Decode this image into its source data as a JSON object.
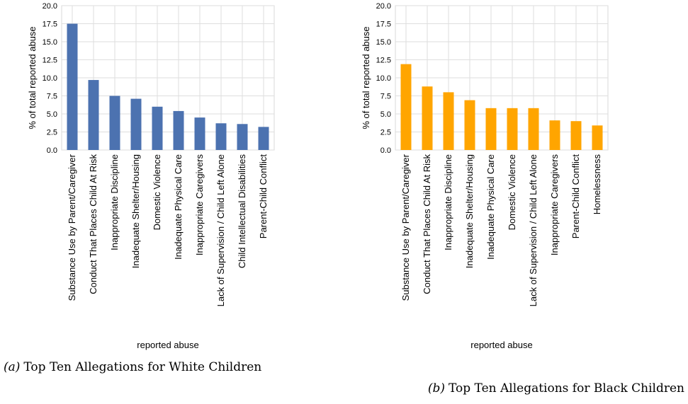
{
  "chart_data": [
    {
      "type": "bar",
      "caption_letter": "(a)",
      "caption_text": "Top Ten Allegations for White Children",
      "xlabel": "reported abuse",
      "ylabel": "% of total reported abuse",
      "ylim": [
        0,
        20
      ],
      "yticks": [
        "0.0",
        "2.5",
        "5.0",
        "7.5",
        "10.0",
        "12.5",
        "15.0",
        "17.5",
        "20.0"
      ],
      "grid": true,
      "color": "#4c72b0",
      "categories": [
        "Substance Use by Parent/Caregiver",
        "Conduct That Places Child At Risk",
        "Inappropriate Discipline",
        "Inadequate Shelter/Housing",
        "Domestic Violence",
        "Inadequate Physical Care",
        "Inappropriate Caregivers",
        "Lack of Supervision / Child Left Alone",
        "Child Intellectual Disabilities",
        "Parent-Child Conflict"
      ],
      "values": [
        17.5,
        9.7,
        7.5,
        7.1,
        6.0,
        5.4,
        4.5,
        3.7,
        3.6,
        3.2
      ]
    },
    {
      "type": "bar",
      "caption_letter": "(b)",
      "caption_text": "Top Ten Allegations for Black Children",
      "xlabel": "reported abuse",
      "ylabel": "% of total reported abuse",
      "ylim": [
        0,
        20
      ],
      "yticks": [
        "0.0",
        "2.5",
        "5.0",
        "7.5",
        "10.0",
        "12.5",
        "15.0",
        "17.5",
        "20.0"
      ],
      "grid": true,
      "color": "#ffa500",
      "categories": [
        "Substance Use by Parent/Caregiver",
        "Conduct That Places Child At Risk",
        "Inappropriate Discipline",
        "Inadequate Shelter/Housing",
        "Inadequate Physical Care",
        "Domestic Violence",
        "Lack of Supervision / Child Left Alone",
        "Inappropriate Caregivers",
        "Parent-Child Conflict",
        "Homelessness"
      ],
      "values": [
        11.9,
        8.8,
        8.0,
        6.9,
        5.8,
        5.8,
        5.8,
        4.1,
        4.0,
        3.4
      ]
    }
  ]
}
